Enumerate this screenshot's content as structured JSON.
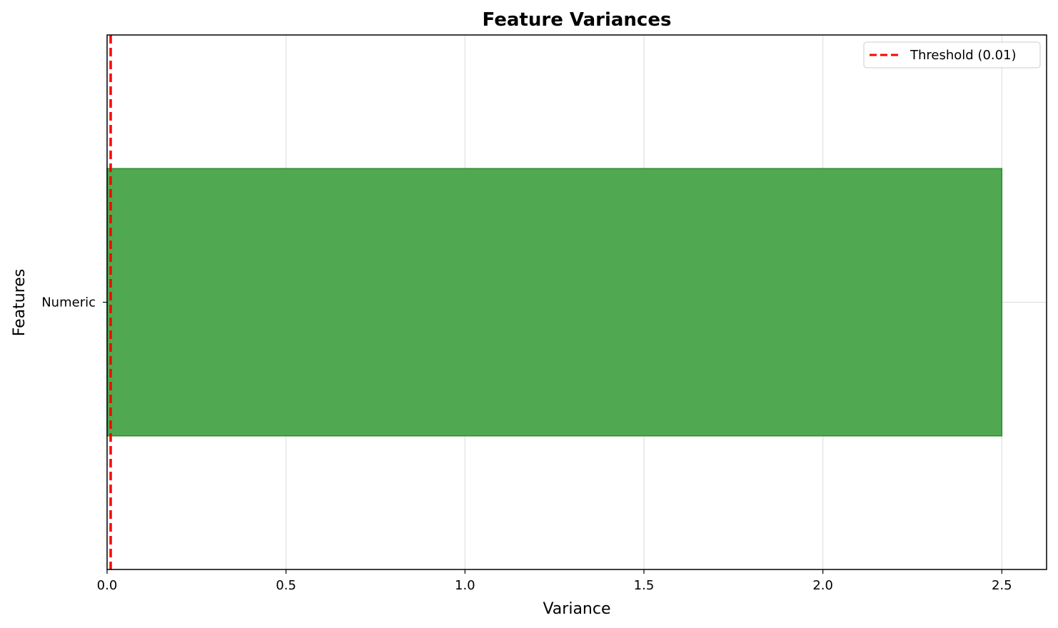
{
  "chart_data": {
    "type": "bar",
    "orientation": "horizontal",
    "title": "Feature Variances",
    "xlabel": "Variance",
    "ylabel": "Features",
    "categories": [
      "Numeric"
    ],
    "values": [
      2.5
    ],
    "xlim": [
      0,
      2.625
    ],
    "xticks": [
      0.0,
      0.5,
      1.0,
      1.5,
      2.0,
      2.5
    ],
    "xtick_labels": [
      "0.0",
      "0.5",
      "1.0",
      "1.5",
      "2.0",
      "2.5"
    ],
    "threshold": {
      "value": 0.01,
      "label": "Threshold (0.01)",
      "color": "#ff0000",
      "style": "dashed"
    },
    "bar_color": "#4ca64c",
    "bar_edge_color": "#2e8b2e",
    "grid": true,
    "legend_position": "top-right"
  }
}
